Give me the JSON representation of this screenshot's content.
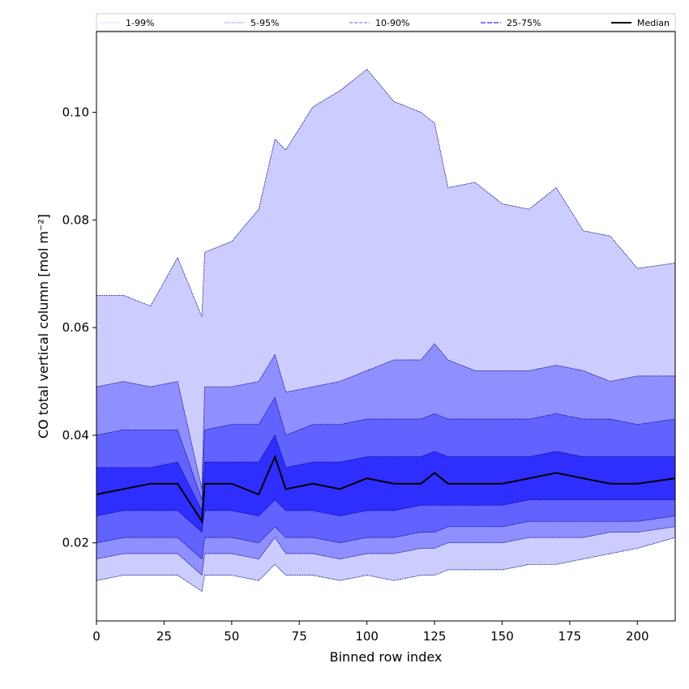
{
  "chart_data": {
    "type": "area",
    "xlabel": "Binned row index",
    "ylabel": "CO total vertical column [mol m⁻²]",
    "xlim": [
      0,
      214
    ],
    "ylim": [
      0.0055,
      0.115
    ],
    "x_ticks": [
      0,
      25,
      50,
      75,
      100,
      125,
      150,
      175,
      200
    ],
    "x_tick_labels": [
      "0",
      "25",
      "50",
      "75",
      "100",
      "125",
      "150",
      "175",
      "200"
    ],
    "y_ticks": [
      0.02,
      0.04,
      0.06,
      0.08,
      0.1
    ],
    "y_tick_labels": [
      "0.02",
      "0.04",
      "0.06",
      "0.08",
      "0.10"
    ],
    "grid": false,
    "legend": {
      "placement": "top",
      "entries": [
        "1-99%",
        "5-95%",
        "10-90%",
        "25-75%",
        "Median"
      ]
    },
    "x": [
      0,
      10,
      20,
      30,
      39,
      40,
      50,
      60,
      66,
      70,
      80,
      90,
      100,
      110,
      120,
      125,
      130,
      140,
      150,
      160,
      170,
      180,
      190,
      200,
      214
    ],
    "series": [
      {
        "name": "1-99%",
        "color": "#ccccff",
        "lower": [
          0.013,
          0.014,
          0.014,
          0.014,
          0.011,
          0.014,
          0.014,
          0.013,
          0.016,
          0.014,
          0.014,
          0.013,
          0.014,
          0.013,
          0.014,
          0.014,
          0.015,
          0.015,
          0.015,
          0.016,
          0.016,
          0.017,
          0.018,
          0.019,
          0.021
        ],
        "upper": [
          0.066,
          0.066,
          0.064,
          0.073,
          0.062,
          0.074,
          0.076,
          0.082,
          0.095,
          0.093,
          0.101,
          0.104,
          0.108,
          0.102,
          0.1,
          0.098,
          0.086,
          0.087,
          0.083,
          0.082,
          0.086,
          0.078,
          0.077,
          0.071,
          0.072
        ]
      },
      {
        "name": "5-95%",
        "color": "#8f8fff",
        "lower": [
          0.017,
          0.018,
          0.018,
          0.018,
          0.014,
          0.018,
          0.018,
          0.017,
          0.021,
          0.018,
          0.018,
          0.017,
          0.018,
          0.018,
          0.019,
          0.019,
          0.02,
          0.02,
          0.02,
          0.021,
          0.021,
          0.021,
          0.022,
          0.022,
          0.023
        ],
        "upper": [
          0.049,
          0.05,
          0.049,
          0.05,
          0.03,
          0.049,
          0.049,
          0.05,
          0.055,
          0.048,
          0.049,
          0.05,
          0.052,
          0.054,
          0.054,
          0.057,
          0.054,
          0.052,
          0.052,
          0.052,
          0.053,
          0.052,
          0.05,
          0.051,
          0.051
        ]
      },
      {
        "name": "10-90%",
        "color": "#6262ff",
        "lower": [
          0.02,
          0.021,
          0.021,
          0.021,
          0.017,
          0.021,
          0.021,
          0.02,
          0.023,
          0.021,
          0.021,
          0.02,
          0.021,
          0.021,
          0.022,
          0.022,
          0.023,
          0.023,
          0.023,
          0.024,
          0.024,
          0.024,
          0.024,
          0.024,
          0.025
        ],
        "upper": [
          0.04,
          0.041,
          0.041,
          0.041,
          0.028,
          0.041,
          0.042,
          0.042,
          0.047,
          0.04,
          0.042,
          0.042,
          0.043,
          0.043,
          0.043,
          0.044,
          0.043,
          0.043,
          0.043,
          0.043,
          0.044,
          0.043,
          0.043,
          0.042,
          0.043
        ]
      },
      {
        "name": "25-75%",
        "color": "#2e2eff",
        "lower": [
          0.025,
          0.026,
          0.026,
          0.026,
          0.022,
          0.026,
          0.026,
          0.025,
          0.028,
          0.026,
          0.026,
          0.025,
          0.026,
          0.026,
          0.027,
          0.027,
          0.027,
          0.027,
          0.027,
          0.028,
          0.028,
          0.028,
          0.028,
          0.028,
          0.028
        ],
        "upper": [
          0.034,
          0.034,
          0.034,
          0.035,
          0.026,
          0.035,
          0.035,
          0.035,
          0.04,
          0.034,
          0.035,
          0.035,
          0.036,
          0.036,
          0.036,
          0.037,
          0.036,
          0.036,
          0.036,
          0.036,
          0.037,
          0.036,
          0.036,
          0.036,
          0.036
        ]
      },
      {
        "name": "Median",
        "color": "#000000",
        "values": [
          0.029,
          0.03,
          0.031,
          0.031,
          0.024,
          0.031,
          0.031,
          0.029,
          0.036,
          0.03,
          0.031,
          0.03,
          0.032,
          0.031,
          0.031,
          0.033,
          0.031,
          0.031,
          0.031,
          0.032,
          0.033,
          0.032,
          0.031,
          0.031,
          0.032
        ]
      }
    ]
  }
}
